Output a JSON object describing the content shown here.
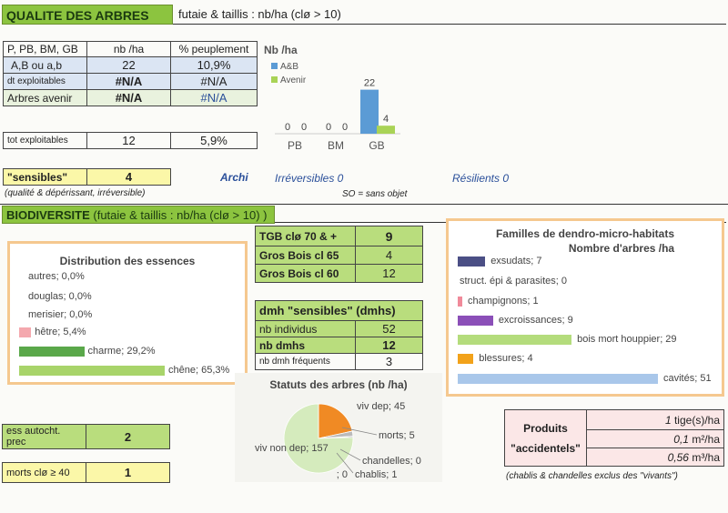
{
  "qualite": {
    "title": "QUALITE DES ARBRES",
    "subtitle": "futaie & taillis : nb/ha  (clø > 10)",
    "table_headers": [
      "P, PB, BM, GB",
      "nb /ha",
      "% peuplement"
    ],
    "rows": [
      {
        "label": "A,B ou a,b",
        "nb": "22",
        "pct": "10,9%"
      },
      {
        "label": "dt exploitables",
        "nb": "#N/A",
        "pct": "#N/A"
      },
      {
        "label": "Arbres avenir",
        "nb": "#N/A",
        "pct": "#N/A"
      }
    ],
    "tot": {
      "label": "tot exploitables",
      "nb": "12",
      "pct": "5,9%"
    },
    "sensibles": {
      "label": "\"sensibles\"",
      "value": "4",
      "note": "(qualité & dépérissant, irréversible)"
    },
    "archi": "Archi",
    "irreversibles": "Irréversibles  0",
    "resilients": "Résilients  0",
    "so_note": "SO = sans objet"
  },
  "chart_data": [
    {
      "type": "bar",
      "title": "Nb /ha",
      "categories": [
        "PB",
        "BM",
        "GB"
      ],
      "series": [
        {
          "name": "A&B",
          "values": [
            0,
            0,
            22
          ],
          "color": "#5b9bd5"
        },
        {
          "name": "Avenir",
          "values": [
            0,
            0,
            4
          ],
          "color": "#a9d356"
        }
      ],
      "ylim": [
        0,
        25
      ]
    },
    {
      "type": "pie",
      "title": "Statuts des arbres (nb /ha)",
      "labels": [
        "viv dep",
        "morts",
        "chandelles",
        "chablis",
        "",
        "viv non dep"
      ],
      "values": [
        45,
        5,
        0,
        1,
        0,
        157
      ],
      "colors": [
        "#f08a24",
        "#bbbbbb",
        "#999999",
        "#777777",
        "#cccccc",
        "#d5ebbd"
      ]
    }
  ],
  "biodiv": {
    "title": "BIODIVERSITE",
    "subtitle": "(futaie & taillis : nb/ha  (clø > 10) )",
    "essences": {
      "title": "Distribution des essences",
      "items": [
        {
          "label": "autres; 0,0%",
          "value": 0.0,
          "color": "#999999"
        },
        {
          "label": "douglas; 0,0%",
          "value": 0.0,
          "color": "#999999"
        },
        {
          "label": "merisier; 0,0%",
          "value": 0.0,
          "color": "#999999"
        },
        {
          "label": "hêtre; 5,4%",
          "value": 5.4,
          "color": "#f4a8ae"
        },
        {
          "label": "charme; 29,2%",
          "value": 29.2,
          "color": "#5aa84a"
        },
        {
          "label": "chêne; 65,3%",
          "value": 65.3,
          "color": "#a8d46a"
        }
      ]
    },
    "tgb": [
      {
        "label": "TGB clø  70 & +",
        "value": "9"
      },
      {
        "label": "Gros Bois cl 65",
        "value": "4"
      },
      {
        "label": "Gros Bois cl 60",
        "value": "12"
      }
    ],
    "dmh": {
      "title": "dmh \"sensibles\" (dmhs)",
      "rows": [
        {
          "label": "nb individus",
          "value": "52"
        },
        {
          "label": "nb dmhs",
          "value": "12"
        },
        {
          "label": "nb dmh fréquents",
          "value": "3"
        }
      ]
    },
    "familles": {
      "title": "Familles de dendro-micro-habitats",
      "subtitle": "Nombre d'arbres /ha",
      "items": [
        {
          "label": "exsudats; 7",
          "value": 7,
          "color": "#4b4f85"
        },
        {
          "label": "struct. épi & parasites; 0",
          "value": 0,
          "color": "#999999"
        },
        {
          "label": "champignons; 1",
          "value": 1,
          "color": "#f08a9a"
        },
        {
          "label": "excroissances; 9",
          "value": 9,
          "color": "#8b4fb8"
        },
        {
          "label": "bois mort houppier; 29",
          "value": 29,
          "color": "#b4dc7c"
        },
        {
          "label": "blessures; 4",
          "value": 4,
          "color": "#f2a21a"
        },
        {
          "label": "cavités; 51",
          "value": 51,
          "color": "#a9c7ea"
        }
      ]
    },
    "ess_autocht": {
      "label": "ess autocht. prec",
      "value": "2"
    },
    "morts": {
      "label": "morts clø ≥  40",
      "value": "1"
    },
    "produits": {
      "title1": "Produits",
      "title2": "\"accidentels\"",
      "rows": [
        {
          "value": "1",
          "unit": " tige(s)/ha"
        },
        {
          "value": "0,1",
          "unit": " m²/ha"
        },
        {
          "value": "0,56",
          "unit": " m³/ha"
        }
      ],
      "note": "(chablis & chandelles exclus des \"vivants\")"
    }
  }
}
